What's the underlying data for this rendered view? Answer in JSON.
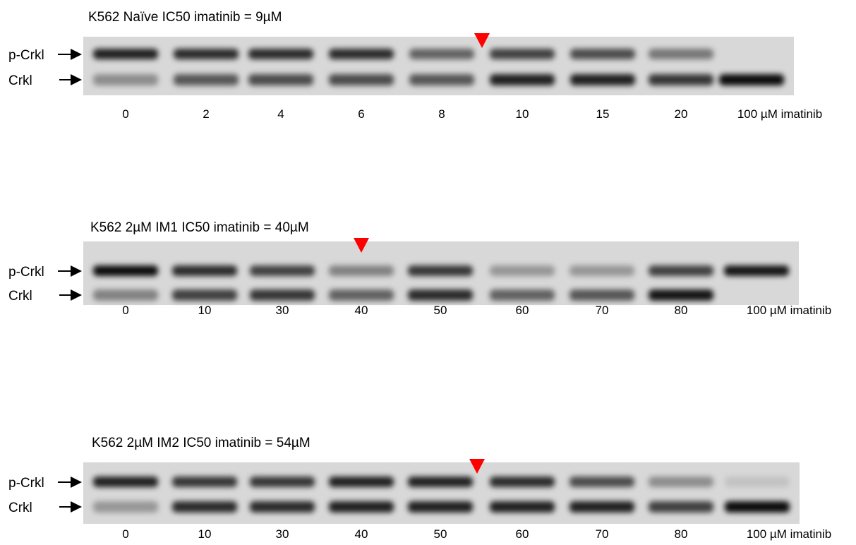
{
  "panels": [
    {
      "title": "K562 Naïve IC50 imatinib = 9µM",
      "band_labels": [
        "p-Crkl",
        "Crkl"
      ],
      "lanes": [
        "0",
        "2",
        "4",
        "6",
        "8",
        "10",
        "15",
        "20",
        "100 µM imatinib"
      ]
    },
    {
      "title": "K562 2µM IM1 IC50 imatinib = 40µM",
      "band_labels": [
        "p-Crkl",
        "Crkl"
      ],
      "lanes": [
        "0",
        "10",
        "30",
        "40",
        "50",
        "60",
        "70",
        "80",
        "100 µM imatinib"
      ]
    },
    {
      "title": "K562 2µM IM2 IC50 imatinib = 54µM",
      "band_labels": [
        "p-Crkl",
        "Crkl"
      ],
      "lanes": [
        "0",
        "10",
        "30",
        "40",
        "50",
        "60",
        "70",
        "80",
        "100 µM imatinib"
      ]
    }
  ]
}
